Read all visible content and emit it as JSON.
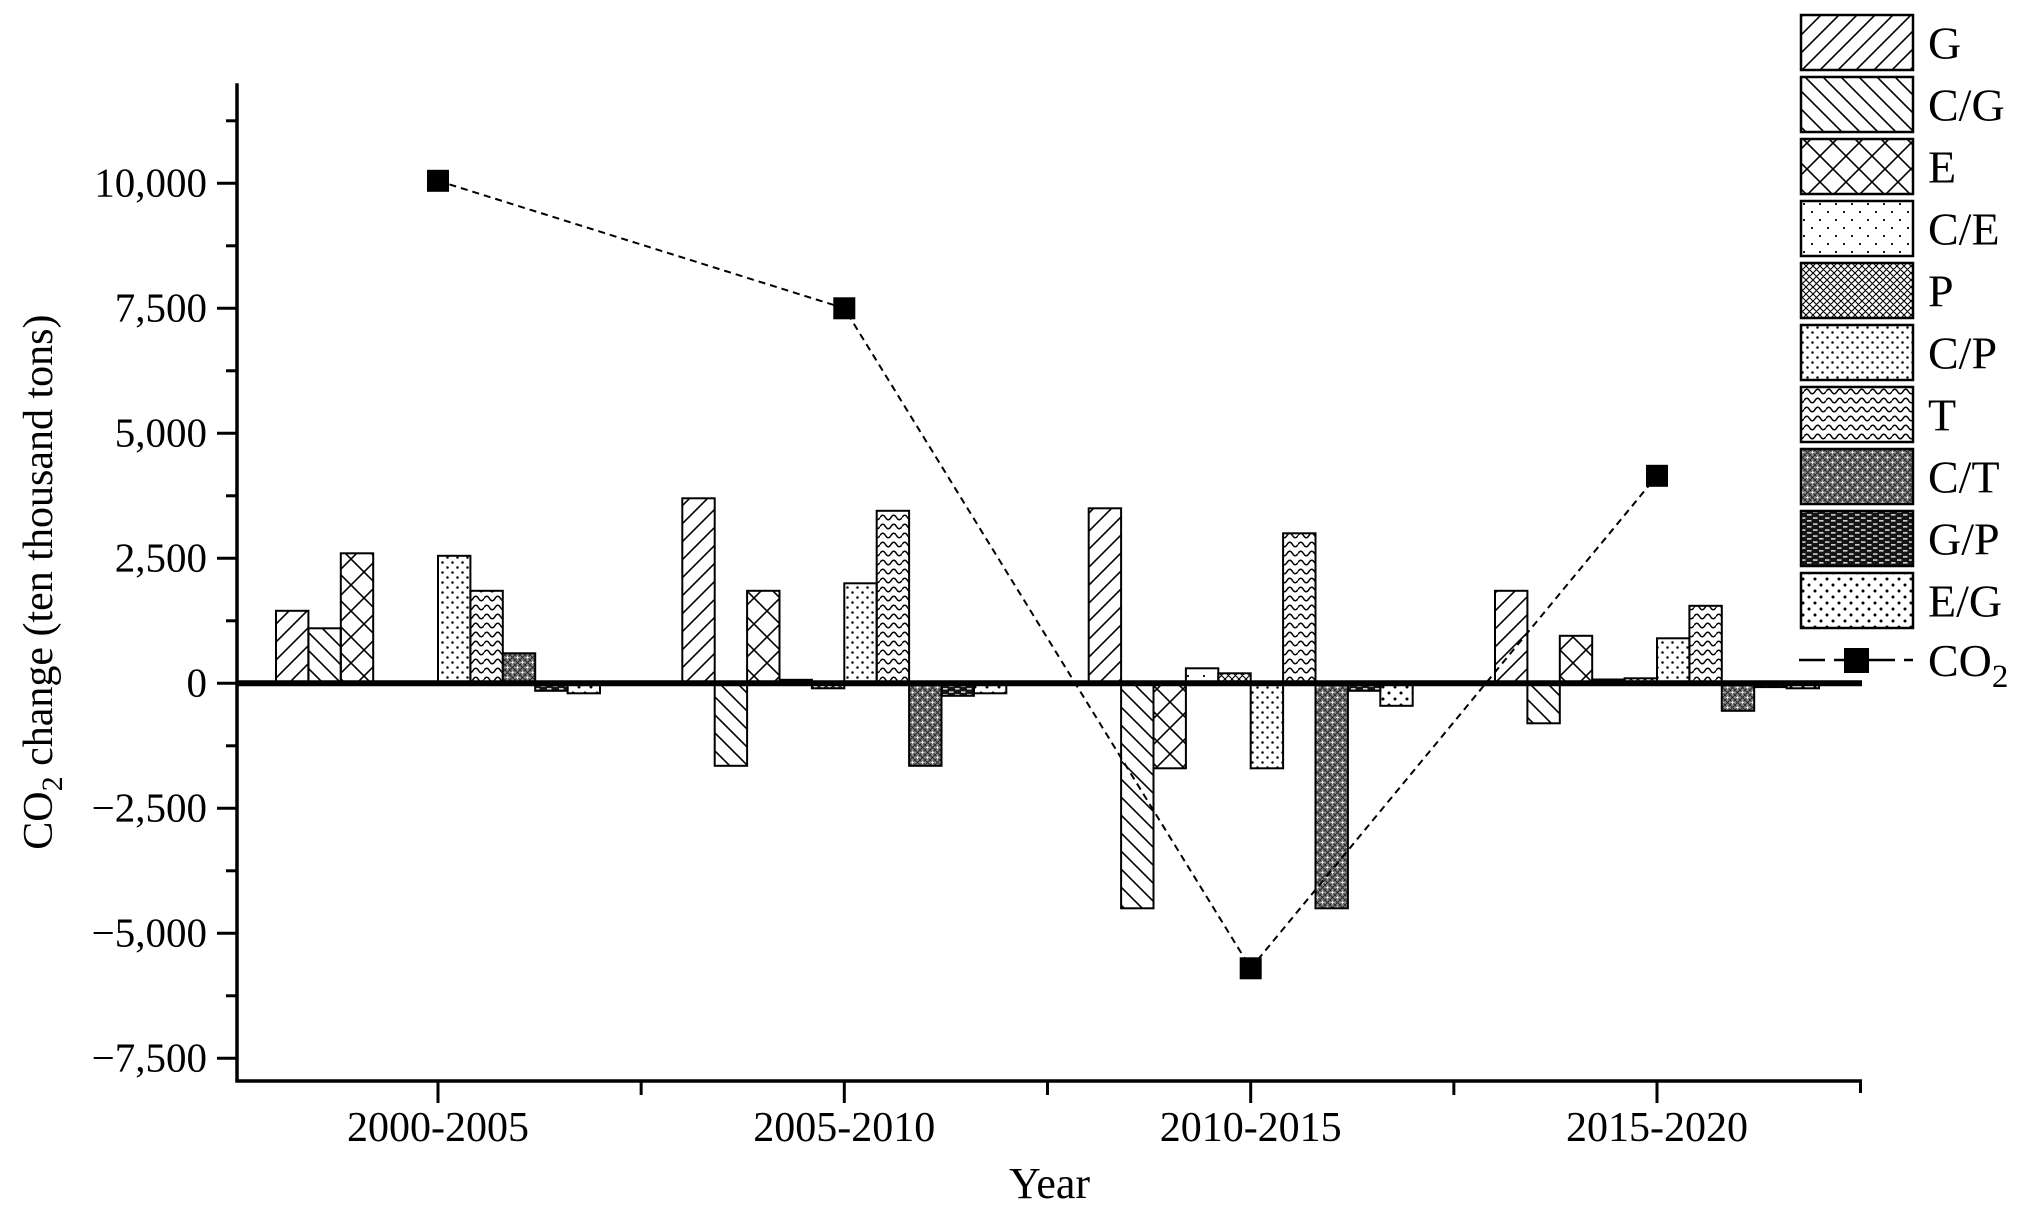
{
  "page": {
    "background": "#ffffff",
    "ink_color": "#000000"
  },
  "chart_data": {
    "type": "bar",
    "subtype": "grouped-bars-with-line-overlay",
    "title": "",
    "xlabel": "Year",
    "ylabel": {
      "prefix": "CO",
      "sub": "2",
      "suffix": " change (ten thousand tons)"
    },
    "categories": [
      "2000-2005",
      "2005-2010",
      "2010-2015",
      "2015-2020"
    ],
    "series": [
      {
        "name": "G",
        "pattern": "diag-forward",
        "values": [
          1450,
          3700,
          3500,
          1850
        ]
      },
      {
        "name": "C/G",
        "pattern": "diag-back",
        "values": [
          1100,
          -1650,
          -4500,
          -800
        ]
      },
      {
        "name": "E",
        "pattern": "crosshatch",
        "values": [
          2600,
          1850,
          -1700,
          950
        ]
      },
      {
        "name": "C/E",
        "pattern": "dots-sparse",
        "values": [
          0,
          70,
          300,
          75
        ]
      },
      {
        "name": "P",
        "pattern": "checker-dense",
        "values": [
          0,
          -100,
          200,
          100
        ]
      },
      {
        "name": "C/P",
        "pattern": "dots-medium",
        "values": [
          2550,
          2000,
          -1700,
          900
        ]
      },
      {
        "name": "T",
        "pattern": "waves",
        "values": [
          1850,
          3450,
          3000,
          1550
        ]
      },
      {
        "name": "C/T",
        "pattern": "checker-gray",
        "values": [
          600,
          -1650,
          -4500,
          -550
        ]
      },
      {
        "name": "G/P",
        "pattern": "dark-dash",
        "values": [
          -150,
          -250,
          -150,
          -75
        ]
      },
      {
        "name": "E/G",
        "pattern": "dots-light",
        "values": [
          -200,
          -200,
          -450,
          -100
        ]
      }
    ],
    "line_series": {
      "name": {
        "prefix": "CO",
        "sub": "2"
      },
      "marker": "filled-square",
      "values": [
        10050,
        7500,
        -5700,
        4150
      ]
    },
    "y_ticks_major": [
      -7500,
      -5000,
      -2500,
      0,
      2500,
      5000,
      7500,
      10000
    ],
    "y_minor_ticks": [
      -6250,
      -3750,
      -1250,
      1250,
      3750,
      6250,
      8750,
      11250
    ],
    "ylim": [
      -8000,
      12000
    ],
    "grid": false,
    "legend_position": "right-outside",
    "zero_line": true
  }
}
